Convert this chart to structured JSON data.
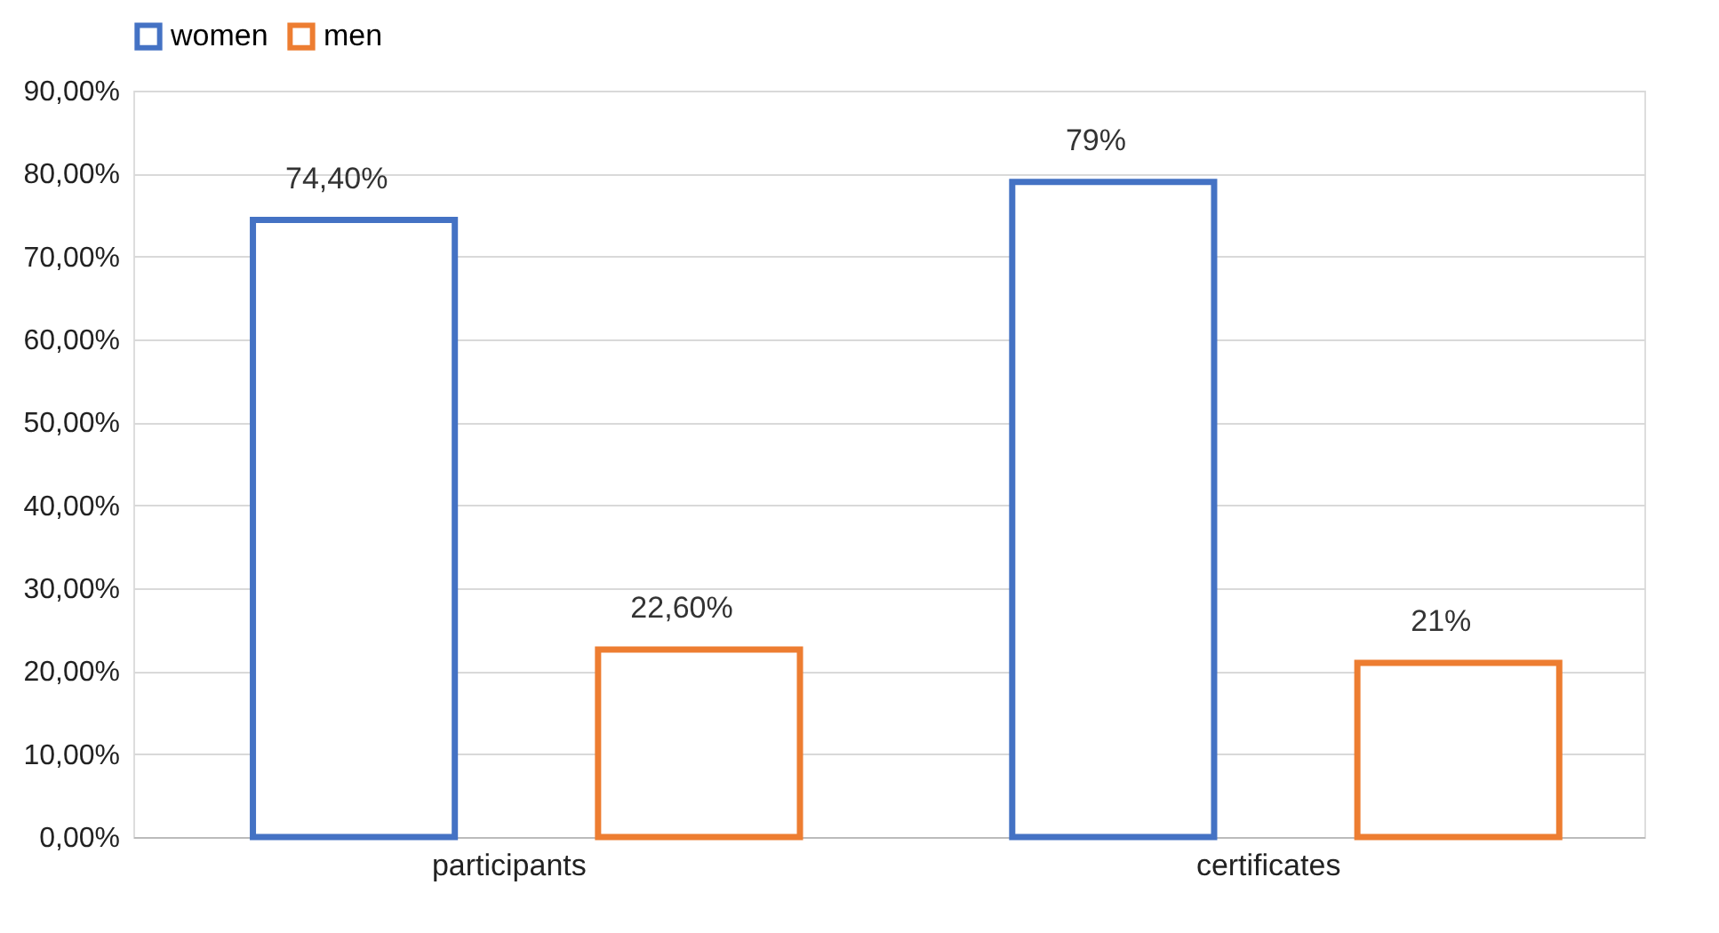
{
  "chart_data": {
    "type": "bar",
    "categories": [
      "participants",
      "certificates"
    ],
    "series": [
      {
        "name": "women",
        "color": "#4472c4",
        "values": [
          74.4,
          79
        ],
        "value_labels": [
          "74,40%",
          "79%"
        ]
      },
      {
        "name": "men",
        "color": "#ed7d31",
        "values": [
          22.6,
          21
        ],
        "value_labels": [
          "22,60%",
          "21%"
        ]
      }
    ],
    "ylim": [
      0,
      90
    ],
    "yticks": [
      {
        "value": 0,
        "label": "0,00%"
      },
      {
        "value": 10,
        "label": "10,00%"
      },
      {
        "value": 20,
        "label": "20,00%"
      },
      {
        "value": 30,
        "label": "30,00%"
      },
      {
        "value": 40,
        "label": "40,00%"
      },
      {
        "value": 50,
        "label": "50,00%"
      },
      {
        "value": 60,
        "label": "60,00%"
      },
      {
        "value": 70,
        "label": "70,00%"
      },
      {
        "value": 80,
        "label": "80,00%"
      },
      {
        "value": 90,
        "label": "90,00%"
      }
    ],
    "grid": true,
    "legend": "top"
  }
}
